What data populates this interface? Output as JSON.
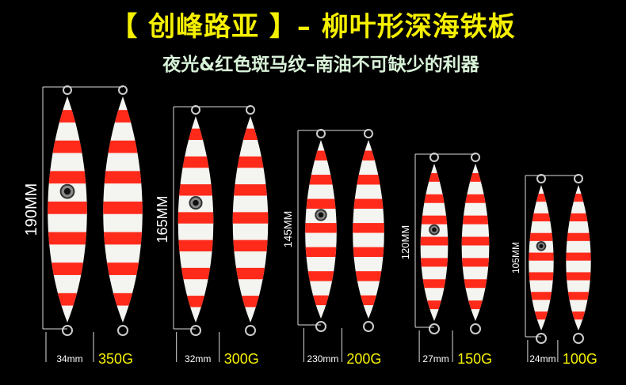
{
  "title": "【 创峰路亚 】– 柳叶形深海铁板",
  "subtitle": "夜光&红色斑马纹–南油不可缺少的利器",
  "colors": {
    "title": "#f5f000",
    "subtitle": "#d8f2d8",
    "stripe": "#ff2a1a",
    "body": "#f4f4f0",
    "background": "#000000"
  },
  "products": [
    {
      "length": "190MM",
      "width": "34mm",
      "weight": "350G"
    },
    {
      "length": "165MM",
      "width": "32mm",
      "weight": "300G"
    },
    {
      "length": "145MM",
      "width": "230mm",
      "weight": "200G"
    },
    {
      "length": "120MM",
      "width": "27mm",
      "weight": "150G"
    },
    {
      "length": "105MM",
      "width": "24mm",
      "weight": "100G"
    }
  ]
}
